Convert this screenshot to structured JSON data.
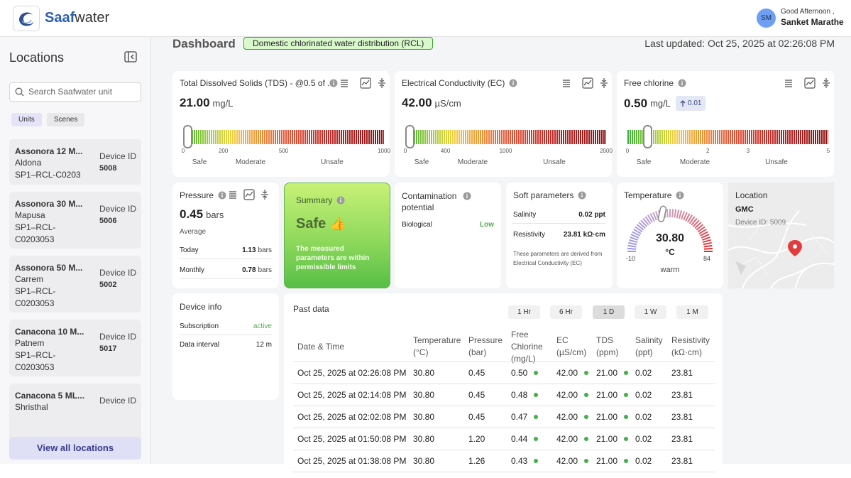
{
  "header": {
    "brand_bold": "Saaf",
    "brand_rest": "water",
    "initials": "SM",
    "greeting": "Good Afternoon ,",
    "user": "Sanket Marathe"
  },
  "sidebar": {
    "title": "Locations",
    "search_placeholder": "Search Saafwater unit",
    "tabs": [
      "Units",
      "Scenes"
    ],
    "device_id_label": "Device ID",
    "units": [
      {
        "name": "Assonora 12 M...",
        "place": "Aldona",
        "code": "SP1–RCL-C0203",
        "id": "5008"
      },
      {
        "name": "Assonora 30 M...",
        "place": "Mapusa",
        "code": "SP1–RCL-C0203053",
        "id": "5006"
      },
      {
        "name": "Assonora 50 M...",
        "place": "Carrem",
        "code": "SP1–RCL-C0203053",
        "id": "5002"
      },
      {
        "name": "Canacona 10 M...",
        "place": "Patnem",
        "code": "SP1–RCL-C0203053",
        "id": "5017"
      },
      {
        "name": "Canacona 5 ML...",
        "place": "Shristhal"
      }
    ],
    "view_all": "View all locations"
  },
  "dashboard": {
    "title": "Dashboard",
    "tag": "Domestic chlorinated water distribution (RCL)",
    "last_updated": "Last updated: Oct 25, 2025 at 02:26:08 PM"
  },
  "zones": [
    "Safe",
    "Moderate",
    "Unsafe"
  ],
  "gauges": [
    {
      "title": "Total Dissolved Solids (TDS) - @0.5 of ...",
      "value": "21.00",
      "unit": "mg/L",
      "ticks": [
        0,
        200,
        500,
        1000
      ]
    },
    {
      "title": "Electrical Conductivity (EC)",
      "value": "42.00",
      "unit": "µS/cm",
      "ticks": [
        0,
        400,
        1000,
        2000
      ]
    },
    {
      "title": "Free chlorine",
      "value": "0.50",
      "unit": "mg/L",
      "change": "0.01",
      "ticks": [
        0,
        2,
        3,
        5
      ]
    }
  ],
  "pressure": {
    "title": "Pressure",
    "value": "0.45",
    "unit": "bars",
    "subtitle": "Average",
    "rows": [
      {
        "label": "Today",
        "value": "1.13",
        "unit": "bars"
      },
      {
        "label": "Monthly",
        "value": "0.78",
        "unit": "bars"
      }
    ]
  },
  "summary": {
    "title": "Summary",
    "status": "Safe",
    "emoji": "👍",
    "text": "The measured parameters are within permissible limits"
  },
  "contamination": {
    "title": "Contamination potential",
    "label": "Biological",
    "value": "Low"
  },
  "soft": {
    "title": "Soft parameters",
    "rows": [
      {
        "label": "Salinity",
        "value": "0.02 ppt"
      },
      {
        "label": "Resistivity",
        "value": "23.81 kΩ·cm"
      }
    ],
    "note": "These parameters are derived from Electrical Conductivity (EC)"
  },
  "temperature": {
    "title": "Temperature",
    "value": "30.80",
    "unit": "°C",
    "min": -10,
    "max": 84,
    "label": "warm"
  },
  "location": {
    "title": "Location",
    "name": "GMC",
    "device": "Device ID: 5009"
  },
  "device_info": {
    "title": "Device info",
    "rows": [
      {
        "label": "Subscription",
        "value": "active"
      },
      {
        "label": "Data interval",
        "value": "12 m"
      }
    ]
  },
  "past_data": {
    "title": "Past data",
    "ranges": [
      "1 Hr",
      "6 Hr",
      "1 D",
      "1 W",
      "1 M"
    ],
    "active_range": "1 D",
    "columns": [
      "Date & Time",
      "Temperature (°C)",
      "Pressure (bar)",
      "Free Chlorine (mg/L)",
      "EC (µS/cm)",
      "TDS (ppm)",
      "Salinity (ppt)",
      "Resistivity (kΩ·cm)"
    ],
    "rows": [
      [
        "Oct 25, 2025 at 02:26:08 PM",
        "30.80",
        "0.45",
        "0.50",
        "42.00",
        "21.00",
        "0.02",
        "23.81"
      ],
      [
        "Oct 25, 2025 at 02:14:08 PM",
        "30.80",
        "0.45",
        "0.48",
        "42.00",
        "21.00",
        "0.02",
        "23.81"
      ],
      [
        "Oct 25, 2025 at 02:02:08 PM",
        "30.80",
        "0.45",
        "0.47",
        "42.00",
        "21.00",
        "0.02",
        "23.81"
      ],
      [
        "Oct 25, 2025 at 01:50:08 PM",
        "30.80",
        "1.20",
        "0.44",
        "42.00",
        "21.00",
        "0.02",
        "23.81"
      ],
      [
        "Oct 25, 2025 at 01:38:08 PM",
        "30.80",
        "1.26",
        "0.43",
        "42.00",
        "21.00",
        "0.02",
        "23.81"
      ]
    ]
  }
}
